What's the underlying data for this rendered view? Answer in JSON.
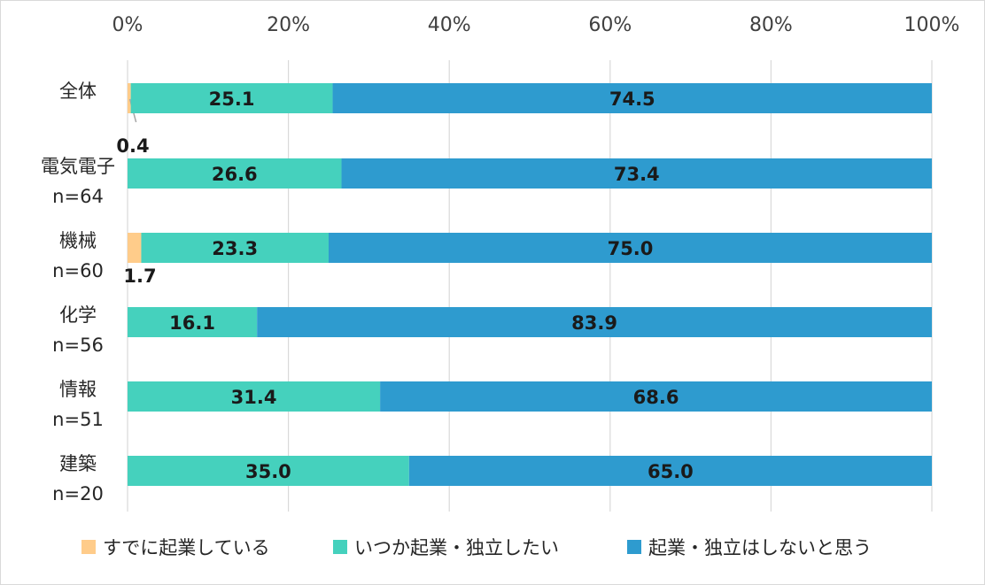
{
  "chart_data": {
    "type": "bar",
    "orientation": "horizontal",
    "stacked": true,
    "normalized": "percent",
    "categories": [
      {
        "name": "全体",
        "n": ""
      },
      {
        "name": "電気電子",
        "n": "n=64"
      },
      {
        "name": "機械",
        "n": "n=60"
      },
      {
        "name": "化学",
        "n": "n=56"
      },
      {
        "name": "情報",
        "n": "n=51"
      },
      {
        "name": "建築",
        "n": "n=20"
      }
    ],
    "series": [
      {
        "name": "すでに起業している",
        "color": "#FFCC8A",
        "values": [
          0.4,
          0.0,
          1.7,
          0.0,
          0.0,
          0.0
        ]
      },
      {
        "name": "いつか起業・独立したい",
        "color": "#45D1BD",
        "values": [
          25.1,
          26.6,
          23.3,
          16.1,
          31.4,
          35.0
        ]
      },
      {
        "name": "起業・独立はしないと思う",
        "color": "#2E9BCF",
        "values": [
          74.5,
          73.4,
          75.0,
          83.9,
          68.6,
          65.0
        ]
      }
    ],
    "data_labels": [
      [
        "0.4",
        "25.1",
        "74.5"
      ],
      [
        "",
        "26.6",
        "73.4"
      ],
      [
        "1.7",
        "23.3",
        "75.0"
      ],
      [
        "",
        "16.1",
        "83.9"
      ],
      [
        "",
        "31.4",
        "68.6"
      ],
      [
        "",
        "35.0",
        "65.0"
      ]
    ],
    "x_ticks": [
      "0%",
      "20%",
      "40%",
      "60%",
      "80%",
      "100%"
    ],
    "xlim": [
      0,
      100
    ],
    "grid": true,
    "axis_position": "top",
    "legend_position": "bottom"
  }
}
